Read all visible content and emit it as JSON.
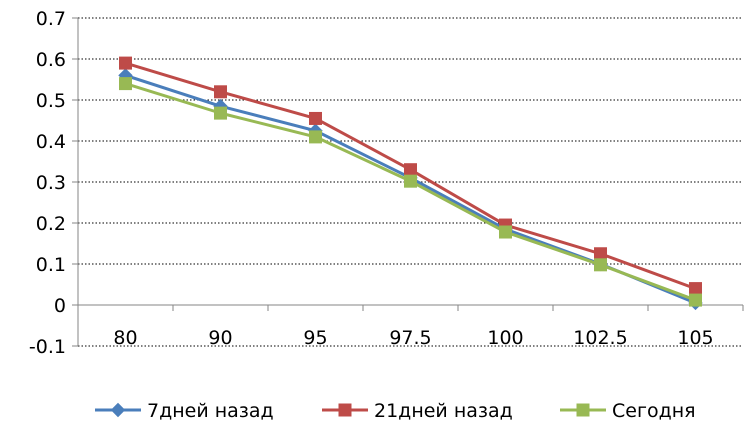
{
  "chart_data": {
    "type": "line",
    "categories": [
      "80",
      "90",
      "95",
      "97.5",
      "100",
      "102.5",
      "105"
    ],
    "series": [
      {
        "name": "7дней назад",
        "color": "#4a7ebb",
        "marker": "diamond",
        "values": [
          0.56,
          0.485,
          0.425,
          0.31,
          0.185,
          0.1,
          0.005
        ]
      },
      {
        "name": "21дней назад",
        "color": "#be4b48",
        "marker": "square",
        "values": [
          0.59,
          0.52,
          0.455,
          0.33,
          0.195,
          0.125,
          0.04
        ]
      },
      {
        "name": "Сегодня",
        "color": "#98b954",
        "marker": "square",
        "values": [
          0.54,
          0.468,
          0.41,
          0.302,
          0.178,
          0.098,
          0.012
        ]
      }
    ],
    "yticks": [
      "-0.1",
      "0",
      "0.1",
      "0.2",
      "0.3",
      "0.4",
      "0.5",
      "0.6",
      "0.7"
    ],
    "ylim": [
      -0.1,
      0.7
    ],
    "grid": true,
    "legend_position": "bottom",
    "title": "",
    "xlabel": "",
    "ylabel": ""
  }
}
